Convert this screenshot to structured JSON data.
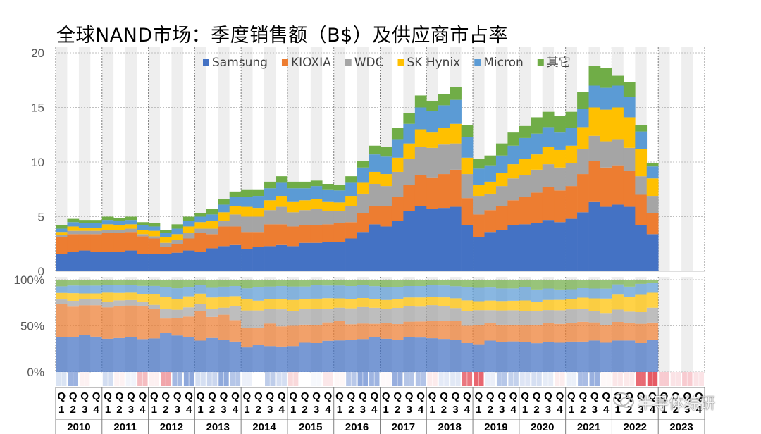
{
  "chart_data": {
    "type": "bar",
    "title": "全球NAND市场：季度销售额（B$）及供应商市占率",
    "stacked": true,
    "ylim": [
      0,
      20
    ],
    "yticks": [
      0,
      5,
      10,
      15,
      20
    ],
    "pct_yticks": [
      "0%",
      "50%",
      "100%"
    ],
    "legend_position": "top",
    "years": [
      "2010",
      "2011",
      "2012",
      "2013",
      "2014",
      "2015",
      "2016",
      "2017",
      "2018",
      "2019",
      "2020",
      "2021",
      "2022",
      "2023"
    ],
    "quarter_labels": [
      "Q1",
      "Q2",
      "Q3",
      "Q4"
    ],
    "quarter_numbers": [
      "1",
      "2",
      "3",
      "4"
    ],
    "series": [
      {
        "name": "Samsung",
        "color": "#4472C4",
        "values": [
          1.6,
          1.8,
          1.9,
          1.8,
          1.8,
          1.8,
          1.9,
          1.6,
          1.6,
          1.6,
          1.7,
          1.9,
          1.8,
          2.1,
          2.3,
          2.4,
          2.0,
          2.2,
          2.3,
          2.4,
          2.3,
          2.6,
          2.6,
          2.7,
          2.7,
          3.0,
          3.6,
          4.3,
          4.1,
          4.6,
          5.5,
          6.0,
          5.7,
          5.8,
          5.9,
          4.2,
          3.1,
          3.6,
          3.8,
          4.2,
          4.3,
          4.4,
          4.7,
          4.5,
          4.8,
          5.4,
          6.4,
          5.9,
          6.1,
          5.9,
          4.2,
          3.4
        ]
      },
      {
        "name": "KIOXIA",
        "color": "#ED7D31",
        "values": [
          1.5,
          1.6,
          1.5,
          1.6,
          1.7,
          1.7,
          1.7,
          1.6,
          1.4,
          0.6,
          0.8,
          1.1,
          1.7,
          1.3,
          1.8,
          1.7,
          1.6,
          1.4,
          2.0,
          1.9,
          1.8,
          1.6,
          1.6,
          1.6,
          1.7,
          1.5,
          1.7,
          1.7,
          1.9,
          2.2,
          2.4,
          2.8,
          2.9,
          3.1,
          3.4,
          2.5,
          2.1,
          2.0,
          2.2,
          2.3,
          2.5,
          2.8,
          3.0,
          2.9,
          3.0,
          3.5,
          3.7,
          3.6,
          3.6,
          3.3,
          2.8,
          1.9
        ]
      },
      {
        "name": "WDC",
        "color": "#A5A5A5",
        "values": [
          0.2,
          0.3,
          0.3,
          0.3,
          0.3,
          0.3,
          0.3,
          0.2,
          0.2,
          0.4,
          0.4,
          0.5,
          0.4,
          0.5,
          0.5,
          1.1,
          1.4,
          1.4,
          1.3,
          1.6,
          1.3,
          1.4,
          1.5,
          1.2,
          1.1,
          1.5,
          1.8,
          2.0,
          1.8,
          2.3,
          2.4,
          2.6,
          2.7,
          2.7,
          2.4,
          2.2,
          1.7,
          1.5,
          1.8,
          2.0,
          2.0,
          2.1,
          2.1,
          2.1,
          2.1,
          2.3,
          2.3,
          2.4,
          2.4,
          2.1,
          1.7,
          1.6
        ]
      },
      {
        "name": "SK Hynix",
        "color": "#FFC000",
        "values": [
          0.3,
          0.4,
          0.3,
          0.3,
          0.5,
          0.4,
          0.4,
          0.4,
          0.5,
          0.5,
          0.5,
          0.6,
          0.6,
          0.7,
          0.8,
          0.8,
          0.9,
          0.8,
          0.9,
          1.0,
          1.0,
          0.9,
          0.9,
          0.9,
          0.8,
          0.9,
          1.0,
          1.1,
          1.1,
          1.3,
          1.4,
          1.6,
          1.4,
          1.5,
          1.8,
          1.5,
          1.0,
          1.1,
          1.2,
          1.3,
          1.5,
          1.4,
          1.6,
          1.6,
          1.6,
          2.0,
          2.6,
          2.9,
          2.9,
          2.8,
          2.5,
          1.6
        ]
      },
      {
        "name": "Micron",
        "color": "#5B9BD5",
        "values": [
          0.3,
          0.4,
          0.4,
          0.4,
          0.4,
          0.4,
          0.4,
          0.4,
          0.4,
          0.4,
          0.5,
          0.5,
          0.5,
          0.6,
          0.7,
          0.8,
          0.9,
          1.1,
          1.1,
          1.2,
          1.2,
          1.1,
          1.2,
          1.1,
          1.1,
          1.2,
          1.4,
          1.6,
          1.6,
          1.7,
          1.8,
          2.0,
          2.0,
          2.1,
          2.2,
          1.9,
          1.5,
          1.5,
          1.6,
          1.7,
          1.9,
          1.9,
          1.8,
          1.6,
          1.6,
          1.7,
          2.0,
          2.0,
          2.0,
          1.9,
          1.6,
          1.1
        ]
      },
      {
        "name": "其它",
        "color": "#70AD47",
        "values": [
          0.3,
          0.3,
          0.3,
          0.3,
          0.3,
          0.3,
          0.3,
          0.3,
          0.3,
          0.3,
          0.4,
          0.4,
          0.3,
          0.5,
          0.5,
          0.5,
          0.7,
          0.6,
          0.6,
          0.6,
          0.6,
          0.6,
          0.5,
          0.5,
          0.5,
          0.6,
          0.6,
          0.8,
          0.9,
          1.0,
          1.0,
          1.1,
          0.9,
          1.0,
          1.2,
          1.1,
          0.9,
          0.9,
          1.1,
          1.2,
          1.1,
          1.5,
          1.4,
          1.5,
          1.5,
          1.5,
          1.8,
          1.8,
          0.9,
          1.3,
          0.6,
          0.3
        ]
      }
    ]
  },
  "watermark": {
    "text": "半导体综研",
    "icon": "chat-bubble-icon"
  }
}
